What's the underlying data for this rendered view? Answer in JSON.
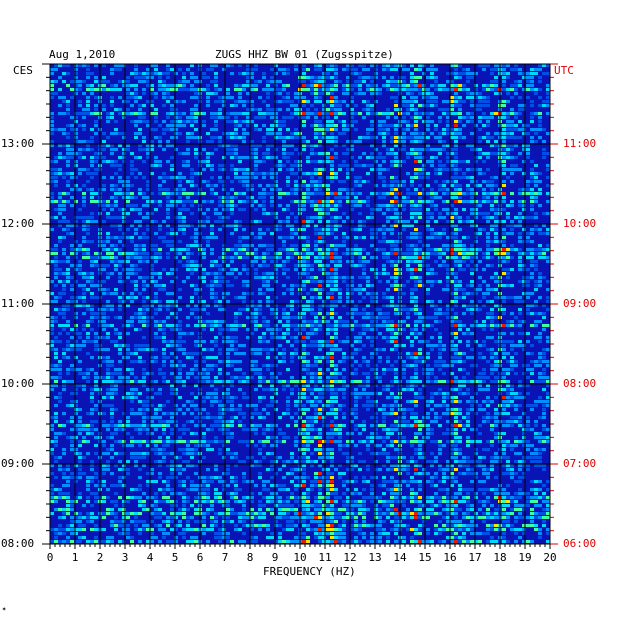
{
  "header": {
    "date": "Aug 1,2010",
    "station": "ZUGS HHZ BW 01 (Zugsspitze)"
  },
  "axes": {
    "left_zone": "CES",
    "right_zone": "UTC",
    "xlabel": "FREQUENCY (HZ)"
  },
  "colors": {
    "background": "#0a14b4",
    "grid": "#000000",
    "utc_text": "#e00000"
  },
  "chart_data": {
    "type": "heatmap",
    "title": "ZUGS HHZ BW 01 (Zugsspitze)",
    "xlabel": "FREQUENCY (HZ)",
    "ylabel_left": "CES",
    "ylabel_right": "UTC",
    "xlim": [
      0,
      20
    ],
    "x_ticks": [
      "0",
      "1",
      "2",
      "3",
      "4",
      "5",
      "6",
      "7",
      "8",
      "9",
      "10",
      "11",
      "12",
      "13",
      "14",
      "15",
      "16",
      "17",
      "18",
      "19",
      "20"
    ],
    "y_ticks_left": [
      "08:00",
      "09:00",
      "10:00",
      "11:00",
      "12:00",
      "13:00"
    ],
    "y_ticks_right": [
      "06:00",
      "07:00",
      "08:00",
      "09:00",
      "10:00",
      "11:00"
    ],
    "grid": true,
    "colormap": "blue-cyan-yellow-red",
    "notable_frequency_bands_hz": [
      10.1,
      10.7,
      11.2,
      13.8,
      14.6,
      16.1,
      18.0
    ]
  }
}
